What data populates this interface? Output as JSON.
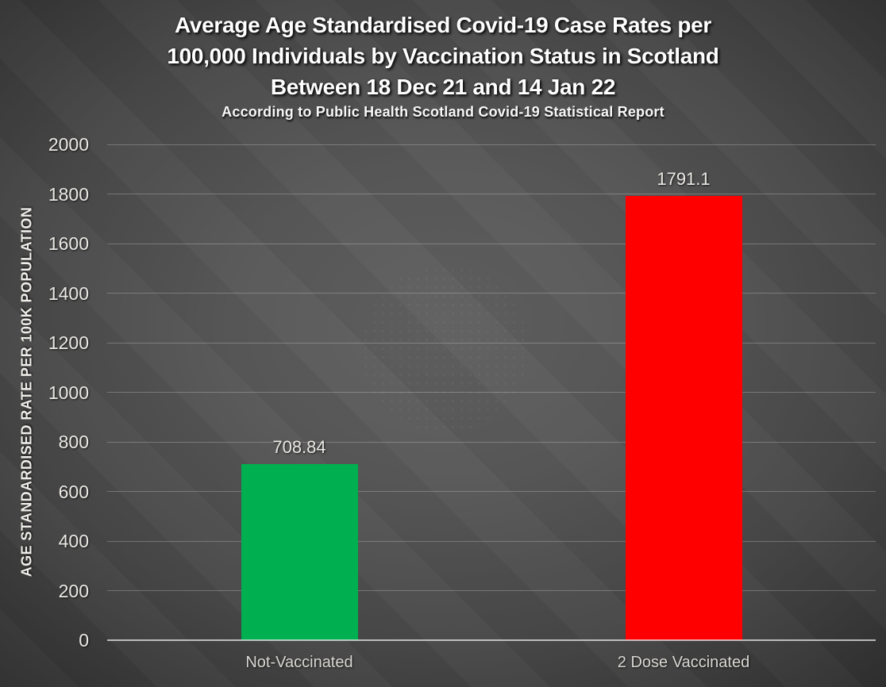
{
  "chart_data": {
    "type": "bar",
    "title_lines": [
      "Average Age Standardised Covid-19 Case Rates per",
      "100,000 Individuals by Vaccination Status in Scotland",
      "Between 18 Dec 21 and 14 Jan 22"
    ],
    "subtitle": "According to Public Health Scotland Covid-19 Statistical Report",
    "ylabel": "AGE STANDARDISED RATE PER 100K POPULATION",
    "xlabel": "",
    "categories": [
      "Not-Vaccinated",
      "2 Dose Vaccinated"
    ],
    "values": [
      708.84,
      1791.1
    ],
    "value_labels": [
      "708.84",
      "1791.1"
    ],
    "bar_colors": [
      "#00B050",
      "#FF0000"
    ],
    "ylim": [
      0,
      2000
    ],
    "ytick_step": 200,
    "ytick_labels": [
      "0",
      "200",
      "400",
      "600",
      "800",
      "1000",
      "1200",
      "1400",
      "1600",
      "1800",
      "2000"
    ],
    "grid": true,
    "legend_position": "none"
  },
  "style": {
    "background_center": "#5f5f5f",
    "background_edge": "#262626",
    "gridline_color": "rgba(255,255,255,0.24)",
    "axis_line_color": "#e6e6e6",
    "title_color": "#ffffff",
    "tick_label_color": "#ebe9e5",
    "category_label_color": "#d9d7d3",
    "green_bar_color": "#00B050",
    "red_bar_color": "#FF0000"
  }
}
